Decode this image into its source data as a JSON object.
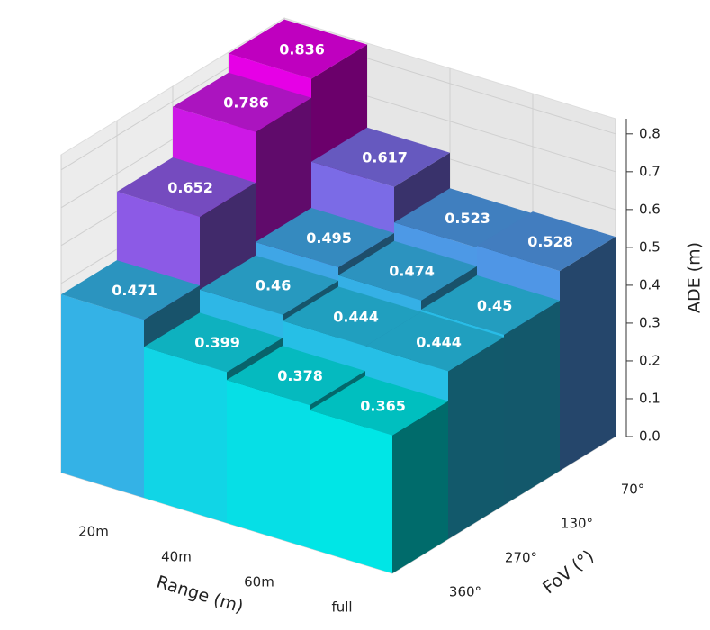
{
  "chart_data": {
    "type": "bar3d",
    "xlabel": "Range (m)",
    "ylabel": "FoV (°)",
    "zlabel": "ADE (m)",
    "x_categories": [
      "20m",
      "40m",
      "60m",
      "full"
    ],
    "y_categories": [
      "360°",
      "270°",
      "130°",
      "70°"
    ],
    "values": [
      [
        0.471,
        0.399,
        0.378,
        0.365
      ],
      [
        0.652,
        0.46,
        0.444,
        0.444
      ],
      [
        0.786,
        0.495,
        0.474,
        0.45
      ],
      [
        0.836,
        0.617,
        0.523,
        0.528
      ]
    ],
    "zlim": [
      0,
      0.84
    ],
    "zticks": [
      {
        "value": 0,
        "label": "0.0"
      },
      0.1,
      0.2,
      0.3,
      0.4,
      0.5,
      0.6,
      0.7,
      0.8
    ],
    "colormap": "cool",
    "grid": true
  }
}
